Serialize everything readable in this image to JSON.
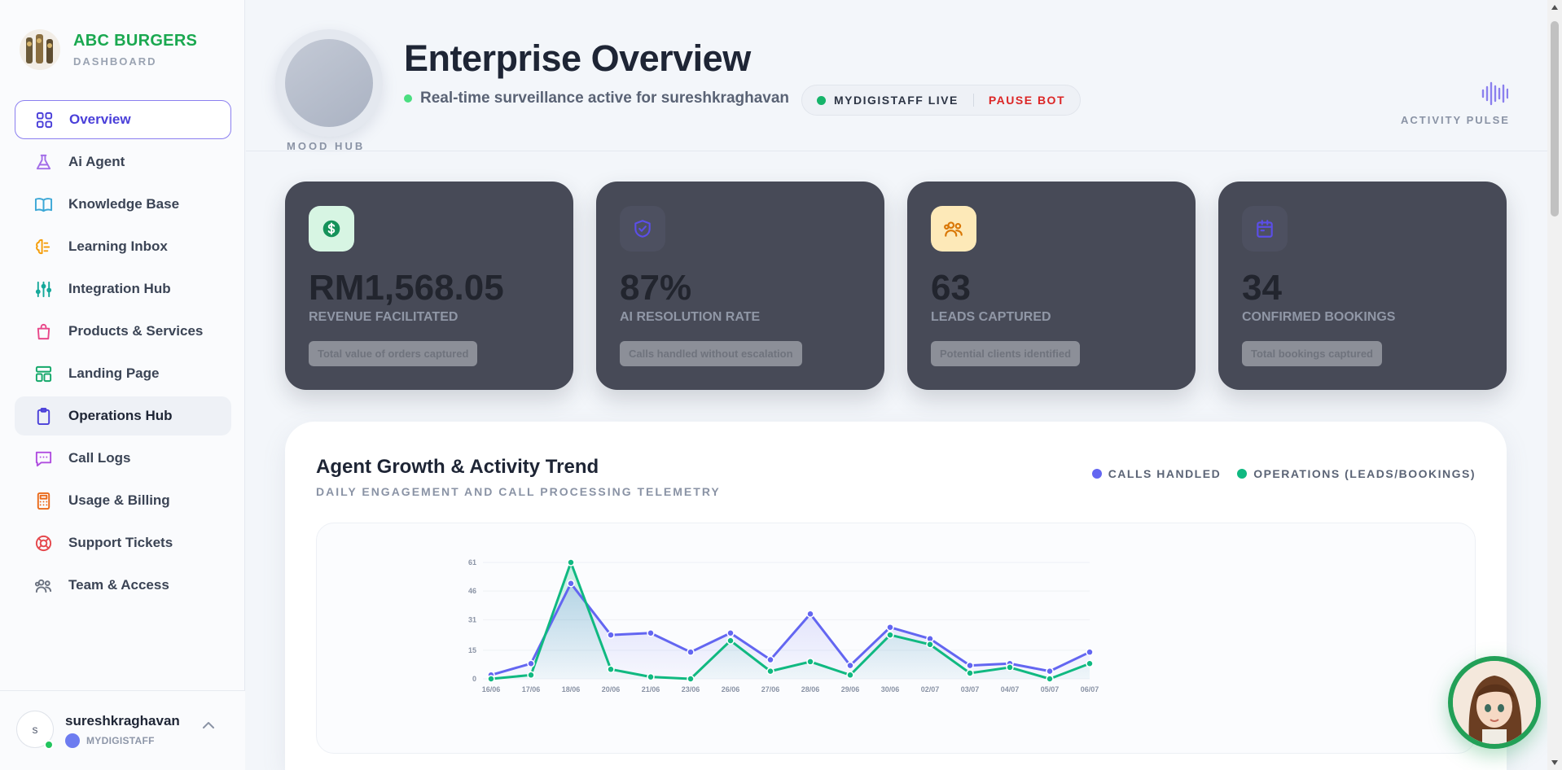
{
  "brand": {
    "name": "ABC BURGERS",
    "subtitle": "DASHBOARD"
  },
  "nav": {
    "items": [
      {
        "label": "Overview",
        "icon": "grid-icon",
        "color": "#4a3fd9",
        "state": "active"
      },
      {
        "label": "Ai Agent",
        "icon": "flask-icon",
        "color": "#a36ee8",
        "state": ""
      },
      {
        "label": "Knowledge Base",
        "icon": "book-icon",
        "color": "#3ba7d6",
        "state": ""
      },
      {
        "label": "Learning Inbox",
        "icon": "brain-icon",
        "color": "#f59e0b",
        "state": ""
      },
      {
        "label": "Integration Hub",
        "icon": "sliders-icon",
        "color": "#14a89a",
        "state": ""
      },
      {
        "label": "Products & Services",
        "icon": "shopping-bag-icon",
        "color": "#e8488a",
        "state": ""
      },
      {
        "label": "Landing Page",
        "icon": "layout-icon",
        "color": "#14a86a",
        "state": ""
      },
      {
        "label": "Operations Hub",
        "icon": "clipboard-icon",
        "color": "#4a3fd9",
        "state": "hover"
      },
      {
        "label": "Call Logs",
        "icon": "chat-icon",
        "color": "#b04ee0",
        "state": ""
      },
      {
        "label": "Usage & Billing",
        "icon": "calculator-icon",
        "color": "#ea6a1a",
        "state": ""
      },
      {
        "label": "Support Tickets",
        "icon": "lifebuoy-icon",
        "color": "#e5484d",
        "state": ""
      },
      {
        "label": "Team & Access",
        "icon": "users-icon",
        "color": "#6b7280",
        "state": ""
      }
    ]
  },
  "user": {
    "initial": "s",
    "name": "sureshkraghavan",
    "org": "MYDIGISTAFF"
  },
  "header": {
    "mood_label": "MOOD HUB",
    "title": "Enterprise Overview",
    "status": "Real-time surveillance active for sureshkraghavan",
    "live_label": "MYDIGISTAFF LIVE",
    "pause_label": "PAUSE BOT",
    "pulse_label": "ACTIVITY PULSE"
  },
  "cards": [
    {
      "value": "RM1,568.05",
      "label": "Revenue Facilitated",
      "note": "Total value of orders captured",
      "icon": "dollar-icon",
      "icon_bg": "#d7f5e3",
      "icon_color": "#15925a"
    },
    {
      "value": "87%",
      "label": "AI Resolution Rate",
      "note": "Calls handled without escalation",
      "icon": "shield-check-icon",
      "icon_bg": "#4d5060",
      "icon_color": "#5b4ee8"
    },
    {
      "value": "63",
      "label": "Leads Captured",
      "note": "Potential clients identified",
      "icon": "users-icon",
      "icon_bg": "#fde9b8",
      "icon_color": "#d97706"
    },
    {
      "value": "34",
      "label": "Confirmed Bookings",
      "note": "Total bookings captured",
      "icon": "calendar-icon",
      "icon_bg": "#4d5060",
      "icon_color": "#5b4ee8"
    }
  ],
  "panel": {
    "title": "Agent Growth & Activity Trend",
    "subtitle": "DAILY ENGAGEMENT AND CALL PROCESSING TELEMETRY",
    "legend": [
      {
        "name": "CALLS HANDLED",
        "color": "#6366f1"
      },
      {
        "name": "OPERATIONS (LEADS/BOOKINGS)",
        "color": "#10b981"
      }
    ]
  },
  "chart_data": {
    "type": "line",
    "x": [
      "16/06",
      "17/06",
      "18/06",
      "20/06",
      "21/06",
      "23/06",
      "26/06",
      "27/06",
      "28/06",
      "29/06",
      "30/06",
      "02/07",
      "03/07",
      "04/07",
      "05/07",
      "06/07"
    ],
    "yticks": [
      0,
      15,
      31,
      46,
      61
    ],
    "ylim": [
      0,
      61
    ],
    "grid": true,
    "series": [
      {
        "name": "CALLS HANDLED",
        "color": "#6366f1",
        "values": [
          2,
          8,
          50,
          23,
          24,
          14,
          24,
          10,
          34,
          7,
          27,
          21,
          7,
          8,
          4,
          14
        ]
      },
      {
        "name": "OPERATIONS (LEADS/BOOKINGS)",
        "color": "#10b981",
        "values": [
          0,
          2,
          61,
          5,
          1,
          0,
          20,
          4,
          9,
          2,
          23,
          18,
          3,
          6,
          0,
          8
        ]
      }
    ]
  }
}
